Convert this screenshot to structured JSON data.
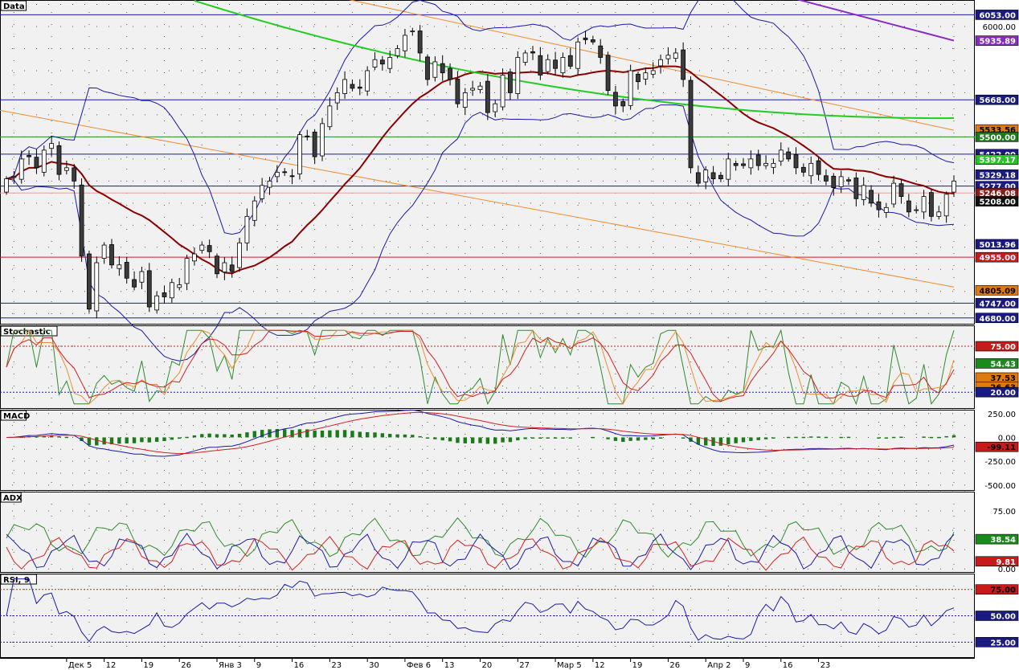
{
  "chart_data": [
    {
      "type": "candlestick",
      "title": "Data",
      "x_tick_labels": [
        "Дек 5",
        "12",
        "19",
        "26",
        "Янв 3",
        "9",
        "16",
        "23",
        "30",
        "Фев 6",
        "13",
        "20",
        "27",
        "Мар 5",
        "12",
        "19",
        "26",
        "Апр 2",
        "9",
        "16",
        "23"
      ],
      "ylim": [
        4650,
        6120
      ],
      "y_ticks": [
        6000.0
      ],
      "price_levels": [
        {
          "value": 6053.0,
          "label": "6053.00",
          "color": "#1a1aa8"
        },
        {
          "value": 5668.0,
          "label": "5668.00",
          "color": "#1a1aa8"
        },
        {
          "value": 5500.0,
          "label": "5500.00",
          "color": "#2e8b2e"
        },
        {
          "value": 5422.0,
          "label": "5422.00",
          "color": "#1a1aa8"
        },
        {
          "value": 5277.0,
          "label": "5277.00",
          "color": "#1a1aa8"
        },
        {
          "value": 4955.0,
          "label": "4955.00",
          "color": "#d42020"
        },
        {
          "value": 4747.0,
          "label": "4747.00",
          "color": "#1a1aa8"
        },
        {
          "value": 4680.0,
          "label": "4680.00",
          "color": "#1a1aa8"
        }
      ],
      "badges": [
        {
          "value": 6053.0,
          "label": "6053.00",
          "bg": "#1a1a80",
          "fg": "#ffffff"
        },
        {
          "value": 5935.89,
          "label": "5935.89",
          "bg": "#8a28c8",
          "fg": "#ffffff"
        },
        {
          "value": 5668.0,
          "label": "5668.00",
          "bg": "#1a1a80",
          "fg": "#ffffff"
        },
        {
          "value": 5533.56,
          "label": "5533.56",
          "bg": "#e07a10",
          "fg": "#000000"
        },
        {
          "value": 5500.0,
          "label": "5500.00",
          "bg": "#1a7a1a",
          "fg": "#ffffff"
        },
        {
          "value": 5422.0,
          "label": "5422.00",
          "bg": "#1a1a80",
          "fg": "#ffffff"
        },
        {
          "value": 5397.17,
          "label": "5397.17",
          "bg": "#20c820",
          "fg": "#ffffff"
        },
        {
          "value": 5329.18,
          "label": "5329.18",
          "bg": "#1a1a80",
          "fg": "#ffffff"
        },
        {
          "value": 5277.0,
          "label": "5277.00",
          "bg": "#1a1a80",
          "fg": "#ffffff"
        },
        {
          "value": 5246.08,
          "label": "5246.08",
          "bg": "#8b1a1a",
          "fg": "#ffffff"
        },
        {
          "value": 5208.0,
          "label": "5208.00",
          "bg": "#101010",
          "fg": "#ffffff"
        },
        {
          "value": 5013.96,
          "label": "5013.96",
          "bg": "#1a1a80",
          "fg": "#ffffff"
        },
        {
          "value": 4955.0,
          "label": "4955.00",
          "bg": "#c81a1a",
          "fg": "#ffffff"
        },
        {
          "value": 4805.09,
          "label": "4805.09",
          "bg": "#e07a10",
          "fg": "#000000"
        },
        {
          "value": 4747.0,
          "label": "4747.00",
          "bg": "#1a1a80",
          "fg": "#ffffff"
        },
        {
          "value": 4680.0,
          "label": "4680.00",
          "bg": "#1a1a80",
          "fg": "#ffffff"
        }
      ],
      "closes": [
        5310,
        5320,
        5400,
        5410,
        5360,
        5440,
        5470,
        5330,
        5360,
        5300,
        4960,
        4720,
        4930,
        5010,
        4920,
        4920,
        4860,
        4820,
        4890,
        4730,
        4780,
        4775,
        4840,
        4830,
        4950,
        4970,
        5010,
        4980,
        4880,
        4930,
        4890,
        5020,
        5140,
        5210,
        5280,
        5300,
        5340,
        5340,
        5320,
        5510,
        5500,
        5410,
        5560,
        5640,
        5700,
        5760,
        5720,
        5720,
        5800,
        5850,
        5830,
        5860,
        5900,
        5960,
        5980,
        5880,
        5760,
        5840,
        5790,
        5760,
        5650,
        5700,
        5720,
        5730,
        5610,
        5650,
        5780,
        5700,
        5860,
        5880,
        5880,
        5780,
        5850,
        5810,
        5860,
        5820,
        5930,
        5940,
        5930,
        5860,
        5710,
        5640,
        5640,
        5800,
        5750,
        5790,
        5800,
        5850,
        5870,
        5880,
        5760,
        5360,
        5290,
        5350,
        5310,
        5310,
        5400,
        5370,
        5370,
        5400,
        5370,
        5380,
        5380,
        5440,
        5400,
        5360,
        5340,
        5380,
        5330,
        5300,
        5270,
        5320,
        5300,
        5220,
        5280,
        5200,
        5170,
        5180,
        5290,
        5230,
        5160,
        5170,
        5230,
        5140,
        5160,
        5240,
        5300
      ],
      "colors": {
        "bull": "#ffffff",
        "bear": "#3c3c3c",
        "wick": "#000000",
        "bands": "#1a1aa8",
        "ma_mid": "#8b0000",
        "ma_green": "#22cc22",
        "channel": "#f08c30",
        "purple": "#8a28c8"
      }
    },
    {
      "type": "line",
      "title": "Stochastic",
      "ylim": [
        0,
        100
      ],
      "levels": [
        {
          "value": 75,
          "color": "#d42020"
        },
        {
          "value": 20,
          "color": "#1a1aa8"
        }
      ],
      "badges": [
        {
          "value": 75,
          "label": "75.00",
          "bg": "#c81a1a",
          "fg": "#ffffff"
        },
        {
          "value": 54.43,
          "label": "54.43",
          "bg": "#1a8a1a",
          "fg": "#ffffff"
        },
        {
          "value": 37.53,
          "label": "37.53",
          "bg": "#e07a10",
          "fg": "#000000"
        },
        {
          "value": 26.63,
          "label": "26.63",
          "bg": "#e07a10",
          "fg": "#000000"
        },
        {
          "value": 20,
          "label": "20.00",
          "bg": "#1a1a80",
          "fg": "#ffffff"
        }
      ],
      "series_colors": [
        "#2e8b2e",
        "#d42020",
        "#f08c30"
      ]
    },
    {
      "type": "bar",
      "title": "MACD",
      "ylim": [
        -560,
        290
      ],
      "y_ticks": [
        250,
        0,
        -250,
        -500
      ],
      "y_tick_labels": [
        "250.00",
        "0.00",
        "-250.00",
        "-500.00"
      ],
      "badges": [
        {
          "value": -99.11,
          "label": "-99.11",
          "bg": "#c81a1a",
          "fg": "#000000"
        }
      ],
      "series_colors": {
        "histogram": "#1a7a1a",
        "macd": "#1a1aa8",
        "signal": "#d42020"
      }
    },
    {
      "type": "line",
      "title": "ADX",
      "ylim": [
        -5,
        100
      ],
      "y_ticks": [
        75,
        0
      ],
      "y_tick_labels": [
        "75.00",
        "0.00"
      ],
      "badges": [
        {
          "value": 38.54,
          "label": "38.54",
          "bg": "#1a8a1a",
          "fg": "#ffffff"
        },
        {
          "value": 9.81,
          "label": "9.81",
          "bg": "#c81a1a",
          "fg": "#ffffff"
        }
      ],
      "series_colors": [
        "#2e8b2e",
        "#1a1aa8",
        "#d42020"
      ]
    },
    {
      "type": "line",
      "title": "RSI, 9",
      "ylim": [
        10,
        90
      ],
      "levels": [
        {
          "value": 75,
          "color": "#d42020"
        },
        {
          "value": 50,
          "color": "#1a1aa8"
        },
        {
          "value": 25,
          "color": "#1a1aa8"
        }
      ],
      "badges": [
        {
          "value": 75,
          "label": "75.00",
          "bg": "#c81a1a",
          "fg": "#000000"
        },
        {
          "value": 50,
          "label": "50.00",
          "bg": "#1a1a80",
          "fg": "#ffffff"
        },
        {
          "value": 25,
          "label": "25.00",
          "bg": "#1a1a80",
          "fg": "#ffffff"
        }
      ],
      "series_colors": [
        "#1a1aa8"
      ]
    }
  ]
}
